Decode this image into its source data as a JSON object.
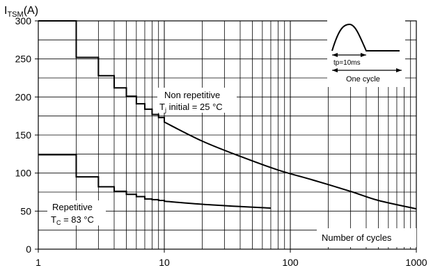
{
  "chart_data": {
    "type": "line",
    "ylabel": {
      "main": "I",
      "sub": "TSM",
      "unit": "(A)"
    },
    "xlabel": "Number of cycles",
    "x_scale": "log",
    "xlim": [
      1,
      1000
    ],
    "ylim": [
      0,
      300
    ],
    "x_ticks": [
      "1",
      "10",
      "100",
      "1000"
    ],
    "y_ticks": [
      "0",
      "50",
      "100",
      "150",
      "200",
      "250",
      "300"
    ],
    "grid": true,
    "series": [
      {
        "name": "Non repetitive Tj initial = 25 °C",
        "shape": "step-then-curve",
        "steps": [
          {
            "x": [
              1,
              2
            ],
            "y": 300
          },
          {
            "x": [
              2,
              3
            ],
            "y": 252
          },
          {
            "x": [
              3,
              4
            ],
            "y": 228
          },
          {
            "x": [
              4,
              5
            ],
            "y": 212
          },
          {
            "x": [
              5,
              6
            ],
            "y": 201
          },
          {
            "x": [
              6,
              7
            ],
            "y": 191
          },
          {
            "x": [
              7,
              8
            ],
            "y": 184
          },
          {
            "x": [
              8,
              9
            ],
            "y": 177
          },
          {
            "x": [
              9,
              10
            ],
            "y": 173
          }
        ],
        "curve": [
          [
            10,
            167
          ],
          [
            20,
            142
          ],
          [
            40,
            122
          ],
          [
            80,
            104
          ],
          [
            150,
            91
          ],
          [
            300,
            76
          ],
          [
            500,
            64
          ],
          [
            1000,
            53
          ]
        ]
      },
      {
        "name": "Repetitive Tc = 83 °C",
        "shape": "step-then-curve",
        "steps": [
          {
            "x": [
              1,
              2
            ],
            "y": 124
          },
          {
            "x": [
              2,
              3
            ],
            "y": 95
          },
          {
            "x": [
              3,
              4
            ],
            "y": 82
          },
          {
            "x": [
              4,
              5
            ],
            "y": 76
          },
          {
            "x": [
              5,
              6
            ],
            "y": 72
          },
          {
            "x": [
              6,
              7
            ],
            "y": 69
          },
          {
            "x": [
              7,
              8
            ],
            "y": 66
          },
          {
            "x": [
              8,
              9
            ],
            "y": 65
          },
          {
            "x": [
              9,
              10
            ],
            "y": 64
          }
        ],
        "curve": [
          [
            10,
            63
          ],
          [
            20,
            59
          ],
          [
            40,
            56
          ],
          [
            70,
            54
          ]
        ]
      }
    ],
    "annotations": {
      "non_repetitive": {
        "line1": "Non repetitive",
        "line2_pre": "T",
        "line2_sub": "j",
        "line2_post": " initial = 25 °C"
      },
      "repetitive": {
        "line1": "Repetitive",
        "line2_pre": "T",
        "line2_sub": "C",
        "line2_post": " = 83 °C"
      },
      "inset": {
        "tp": "tp=10ms",
        "cycle": "One cycle"
      }
    }
  }
}
